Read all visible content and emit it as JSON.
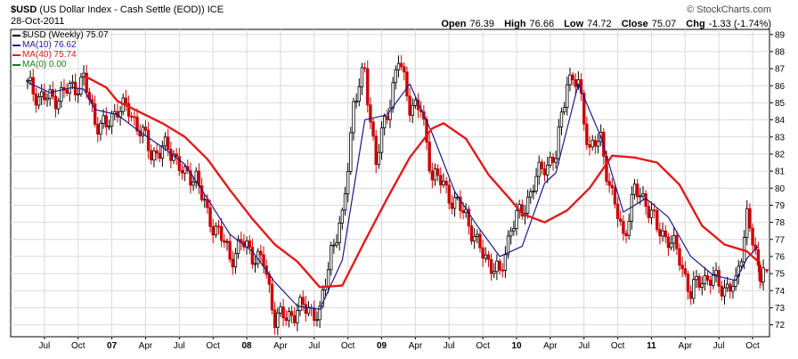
{
  "header": {
    "symbol": "$USD",
    "description": "(US Dollar Index - Cash Settle (EOD))",
    "exchange": "ICE",
    "date": "28-Oct-2011",
    "copyright": "© StockCharts.com",
    "open_label": "Open",
    "open_value": "76.39",
    "high_label": "High",
    "high_value": "76.66",
    "low_label": "Low",
    "low_value": "74.72",
    "close_label": "Close",
    "close_value": "75.07",
    "chg_label": "Chg",
    "chg_value": "-1.33 (-1.74%)"
  },
  "legend": [
    {
      "label": "$USD (Weekly) 75.07",
      "color": "#000000"
    },
    {
      "label": "MA(10) 76.62",
      "color": "#1a1a8c"
    },
    {
      "label": "MA(40) 75.74",
      "color": "#e01b1b"
    },
    {
      "label": "MA(0) 0.00",
      "color": "#1a7a1a"
    }
  ],
  "chart_data": {
    "type": "line",
    "title": "$USD (US Dollar Index - Cash Settle (EOD)) ICE",
    "xlabel": "",
    "ylabel": "",
    "ylim": [
      71.3,
      89.3
    ],
    "y_ticks": [
      72,
      73,
      74,
      75,
      76,
      77,
      78,
      79,
      80,
      81,
      82,
      83,
      84,
      85,
      86,
      87,
      88,
      89
    ],
    "x_tick_labels": [
      "Jul",
      "Oct",
      "07",
      "Apr",
      "Jul",
      "Oct",
      "08",
      "Apr",
      "Jul",
      "Oct",
      "09",
      "Apr",
      "Jul",
      "Oct",
      "10",
      "Apr",
      "Jul",
      "Oct",
      "11",
      "Apr",
      "Jul",
      "Oct"
    ],
    "x_tick_dates": [
      "2006-07",
      "2006-10",
      "2007-01",
      "2007-04",
      "2007-07",
      "2007-10",
      "2008-01",
      "2008-04",
      "2008-07",
      "2008-10",
      "2009-01",
      "2009-04",
      "2009-07",
      "2009-10",
      "2010-01",
      "2010-04",
      "2010-07",
      "2010-10",
      "2011-01",
      "2011-04",
      "2011-07",
      "2011-10"
    ],
    "grid": true,
    "series": [
      {
        "name": "$USD (Weekly)",
        "style": "candlestick-hlc",
        "color": "#000000",
        "points": [
          [
            "2006-05",
            86.0
          ],
          [
            "2006-06",
            85.4
          ],
          [
            "2006-07",
            85.2
          ],
          [
            "2006-08",
            85.5
          ],
          [
            "2006-09",
            85.9
          ],
          [
            "2006-10",
            86.3
          ],
          [
            "2006-11",
            84.0
          ],
          [
            "2006-12",
            83.5
          ],
          [
            "2007-01",
            84.8
          ],
          [
            "2007-02",
            84.5
          ],
          [
            "2007-03",
            83.5
          ],
          [
            "2007-04",
            82.0
          ],
          [
            "2007-05",
            82.3
          ],
          [
            "2007-06",
            82.1
          ],
          [
            "2007-07",
            80.6
          ],
          [
            "2007-08",
            80.8
          ],
          [
            "2007-09",
            78.3
          ],
          [
            "2007-10",
            77.5
          ],
          [
            "2007-11",
            75.9
          ],
          [
            "2007-12",
            76.8
          ],
          [
            "2008-01",
            76.2
          ],
          [
            "2008-02",
            75.6
          ],
          [
            "2008-03",
            72.5
          ],
          [
            "2008-04",
            72.4
          ],
          [
            "2008-05",
            72.9
          ],
          [
            "2008-06",
            73.0
          ],
          [
            "2008-07",
            72.5
          ],
          [
            "2008-08",
            76.5
          ],
          [
            "2008-09",
            78.0
          ],
          [
            "2008-10",
            85.0
          ],
          [
            "2008-11",
            86.8
          ],
          [
            "2008-12",
            81.5
          ],
          [
            "2009-01",
            84.5
          ],
          [
            "2009-02",
            87.5
          ],
          [
            "2009-03",
            85.0
          ],
          [
            "2009-04",
            84.5
          ],
          [
            "2009-05",
            80.8
          ],
          [
            "2009-06",
            80.2
          ],
          [
            "2009-07",
            79.1
          ],
          [
            "2009-08",
            78.5
          ],
          [
            "2009-09",
            76.6
          ],
          [
            "2009-10",
            75.8
          ],
          [
            "2009-11",
            74.8
          ],
          [
            "2009-12",
            77.8
          ],
          [
            "2010-01",
            78.6
          ],
          [
            "2010-02",
            80.2
          ],
          [
            "2010-03",
            81.4
          ],
          [
            "2010-04",
            81.8
          ],
          [
            "2010-05",
            86.5
          ],
          [
            "2010-06",
            86.0
          ],
          [
            "2010-07",
            82.3
          ],
          [
            "2010-08",
            82.8
          ],
          [
            "2010-09",
            79.5
          ],
          [
            "2010-10",
            77.2
          ],
          [
            "2010-11",
            79.8
          ],
          [
            "2010-12",
            79.3
          ],
          [
            "2011-01",
            77.6
          ],
          [
            "2011-02",
            77.1
          ],
          [
            "2011-03",
            75.9
          ],
          [
            "2011-04",
            73.8
          ],
          [
            "2011-05",
            74.8
          ],
          [
            "2011-06",
            74.6
          ],
          [
            "2011-07",
            74.2
          ],
          [
            "2011-08",
            74.2
          ],
          [
            "2011-09",
            78.5
          ],
          [
            "2011-10",
            75.1
          ]
        ]
      },
      {
        "name": "MA(10)",
        "color": "#1a1a8c",
        "points": [
          [
            "2006-05",
            86.2
          ],
          [
            "2006-07",
            85.6
          ],
          [
            "2006-09",
            85.9
          ],
          [
            "2006-10",
            85.8
          ],
          [
            "2006-11",
            84.6
          ],
          [
            "2007-01",
            84.3
          ],
          [
            "2007-03",
            83.3
          ],
          [
            "2007-05",
            82.4
          ],
          [
            "2007-07",
            81.4
          ],
          [
            "2007-09",
            79.4
          ],
          [
            "2007-11",
            77.3
          ],
          [
            "2008-01",
            76.3
          ],
          [
            "2008-03",
            74.5
          ],
          [
            "2008-05",
            73.1
          ],
          [
            "2008-07",
            72.9
          ],
          [
            "2008-09",
            75.8
          ],
          [
            "2008-11",
            84.0
          ],
          [
            "2009-01",
            84.3
          ],
          [
            "2009-03",
            86.1
          ],
          [
            "2009-05",
            83.2
          ],
          [
            "2009-07",
            79.8
          ],
          [
            "2009-09",
            77.8
          ],
          [
            "2009-11",
            76.0
          ],
          [
            "2010-01",
            76.6
          ],
          [
            "2010-03",
            80.3
          ],
          [
            "2010-04",
            80.9
          ],
          [
            "2010-06",
            86.1
          ],
          [
            "2010-08",
            83.0
          ],
          [
            "2010-10",
            78.6
          ],
          [
            "2010-12",
            79.4
          ],
          [
            "2011-02",
            78.3
          ],
          [
            "2011-04",
            76.0
          ],
          [
            "2011-06",
            74.9
          ],
          [
            "2011-08",
            74.6
          ],
          [
            "2011-09",
            75.9
          ],
          [
            "2011-10",
            76.6
          ]
        ]
      },
      {
        "name": "MA(40)",
        "color": "#e01b1b",
        "points": [
          [
            "2006-10",
            86.6
          ],
          [
            "2006-12",
            85.9
          ],
          [
            "2007-01",
            85.1
          ],
          [
            "2007-05",
            83.8
          ],
          [
            "2007-07",
            83.0
          ],
          [
            "2007-09",
            81.7
          ],
          [
            "2007-11",
            79.9
          ],
          [
            "2008-01",
            78.2
          ],
          [
            "2008-03",
            76.7
          ],
          [
            "2008-05",
            75.7
          ],
          [
            "2008-07",
            74.2
          ],
          [
            "2008-09",
            74.3
          ],
          [
            "2008-11",
            76.9
          ],
          [
            "2009-01",
            79.4
          ],
          [
            "2009-03",
            81.8
          ],
          [
            "2009-05",
            83.5
          ],
          [
            "2009-06",
            83.8
          ],
          [
            "2009-08",
            82.9
          ],
          [
            "2009-10",
            80.8
          ],
          [
            "2009-12",
            79.3
          ],
          [
            "2010-01",
            78.5
          ],
          [
            "2010-03",
            78.0
          ],
          [
            "2010-05",
            78.7
          ],
          [
            "2010-07",
            80.0
          ],
          [
            "2010-09",
            81.9
          ],
          [
            "2010-11",
            81.8
          ],
          [
            "2011-01",
            81.5
          ],
          [
            "2011-03",
            80.2
          ],
          [
            "2011-05",
            77.8
          ],
          [
            "2011-07",
            76.7
          ],
          [
            "2011-09",
            76.3
          ],
          [
            "2011-10",
            75.7
          ]
        ]
      }
    ]
  }
}
